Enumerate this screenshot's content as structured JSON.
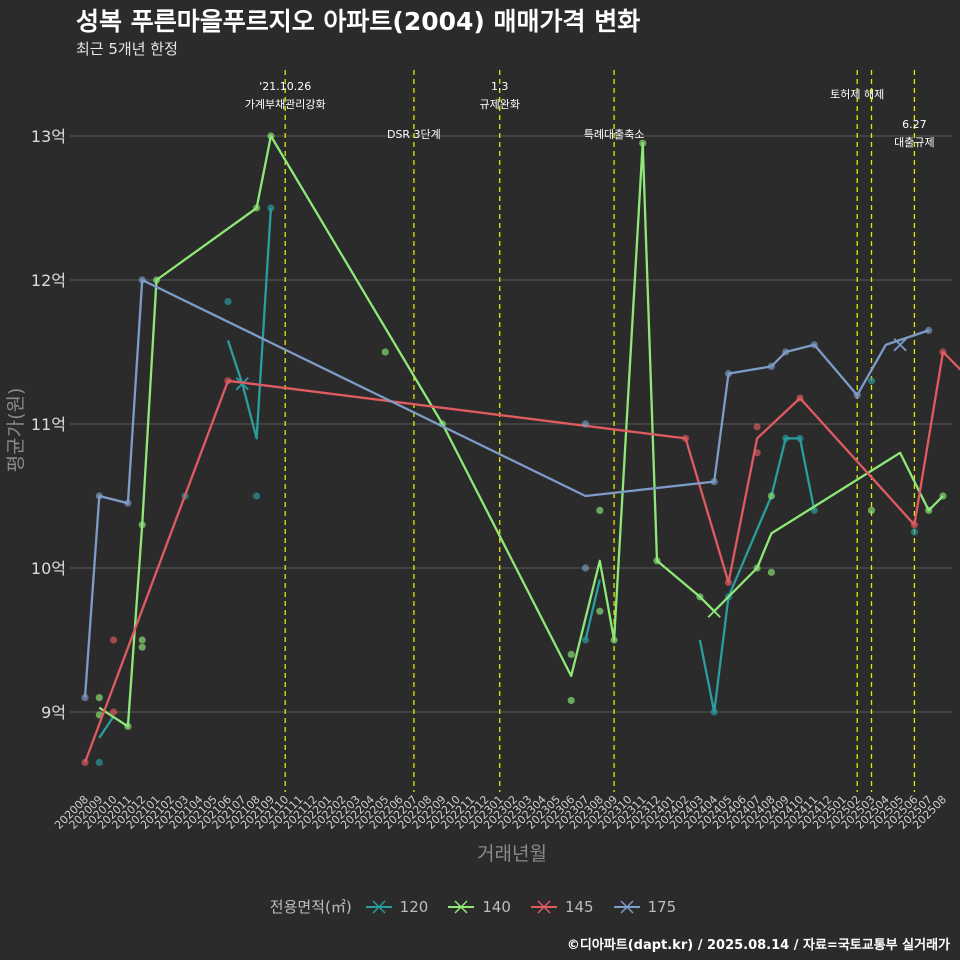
{
  "title": "성복 푸른마을푸르지오 아파트(2004) 매매가격 변화",
  "subtitle": "최근 5개년 한정",
  "caption": "©디아파트(dapt.kr) / 2025.08.14 / 자료=국토교통부 실거래가",
  "colors": {
    "background": "#2b2b2b",
    "grid": "#505050",
    "vline": "#e6e600",
    "s120": "#2a9d9f",
    "s140": "#8ee878",
    "s145": "#e05a62",
    "s175": "#7e9cc8"
  },
  "chart_data": {
    "type": "line",
    "title": "성복 푸른마을푸르지오 아파트(2004) 매매가격 변화",
    "subtitle": "최근 5개년 한정",
    "xlabel": "거래년월",
    "ylabel": "평균가(원)",
    "ylim": [
      8.5,
      13.45
    ],
    "yticks": [
      9,
      10,
      11,
      12,
      13
    ],
    "ytick_labels": [
      "9억",
      "10억",
      "11억",
      "12억",
      "13억"
    ],
    "legend_title": "전용면적(㎡)",
    "legend_position": "bottom",
    "grid": true,
    "x_categories": [
      "202008",
      "202009",
      "202010",
      "202011",
      "202012",
      "202101",
      "202102",
      "202103",
      "202104",
      "202105",
      "202106",
      "202107",
      "202108",
      "202109",
      "202110",
      "202111",
      "202112",
      "202201",
      "202202",
      "202203",
      "202204",
      "202205",
      "202206",
      "202207",
      "202208",
      "202209",
      "202210",
      "202211",
      "202212",
      "202301",
      "202302",
      "202303",
      "202304",
      "202305",
      "202306",
      "202307",
      "202308",
      "202309",
      "202310",
      "202311",
      "202312",
      "202401",
      "202402",
      "202403",
      "202404",
      "202405",
      "202406",
      "202407",
      "202408",
      "202409",
      "202410",
      "202411",
      "202412",
      "202501",
      "202502",
      "202503",
      "202504",
      "202505",
      "202506",
      "202507",
      "202508"
    ],
    "events": [
      {
        "x": "202110",
        "label": "'21.10.26\n가계부채관리강화",
        "row": 0
      },
      {
        "x": "202207",
        "label": "DSR 3단계",
        "row": 2
      },
      {
        "x": "202301",
        "label": "1.3\n규제완화",
        "row": 0
      },
      {
        "x": "202309",
        "label": "특례대출축소",
        "row": 2
      },
      {
        "x": "202502",
        "label": "토허제 해제",
        "row": 1
      },
      {
        "x": "202503",
        "label": "",
        "row": 0
      },
      {
        "x": "202506",
        "label": "6.27\n대출규제",
        "row": 3
      }
    ],
    "series": [
      {
        "name": "120",
        "color": "#2a9d9f",
        "line": [
          [
            "202009",
            8.82
          ],
          [
            "202010",
            8.97
          ]
        ],
        "line2": [
          [
            "202106",
            11.58
          ],
          [
            "202107",
            11.28
          ],
          [
            "202108",
            10.9
          ],
          [
            "202109",
            12.5
          ]
        ],
        "line3": [
          [
            "202307",
            9.5
          ],
          [
            "202308",
            9.92
          ]
        ],
        "line4": [
          [
            "202403",
            9.5
          ],
          [
            "202404",
            9.0
          ],
          [
            "202405",
            9.8
          ],
          [
            "202408",
            10.5
          ],
          [
            "202409",
            10.9
          ],
          [
            "202410",
            10.9
          ],
          [
            "202411",
            10.4
          ]
        ],
        "points": [
          [
            "202009",
            8.65
          ],
          [
            "202103",
            10.5
          ],
          [
            "202106",
            11.85
          ],
          [
            "202108",
            10.5
          ],
          [
            "202109",
            12.5
          ],
          [
            "202307",
            9.5
          ],
          [
            "202404",
            9.0
          ],
          [
            "202405",
            9.8
          ],
          [
            "202409",
            10.9
          ],
          [
            "202410",
            10.9
          ],
          [
            "202411",
            10.4
          ],
          [
            "202503",
            11.3
          ],
          [
            "202506",
            10.25
          ]
        ],
        "crosses": [
          [
            "202107",
            11.28
          ]
        ]
      },
      {
        "name": "140",
        "color": "#8ee878",
        "line": [
          [
            "202009",
            9.03
          ],
          [
            "202011",
            8.9
          ],
          [
            "202012",
            10.3
          ],
          [
            "202101",
            12.0
          ],
          [
            "202108",
            12.5
          ],
          [
            "202109",
            13.0
          ],
          [
            "202209",
            11.0
          ],
          [
            "202306",
            9.25
          ],
          [
            "202308",
            10.05
          ],
          [
            "202309",
            9.5
          ],
          [
            "202311",
            12.95
          ],
          [
            "202312",
            10.05
          ],
          [
            "202403",
            9.8
          ],
          [
            "202404",
            9.7
          ],
          [
            "202407",
            10.0
          ],
          [
            "202408",
            10.24
          ],
          [
            "202505",
            10.8
          ],
          [
            "202507",
            10.4
          ],
          [
            "202508",
            10.5
          ]
        ],
        "points": [
          [
            "202009",
            9.1
          ],
          [
            "202009",
            8.98
          ],
          [
            "202011",
            8.9
          ],
          [
            "202012",
            9.5
          ],
          [
            "202012",
            9.45
          ],
          [
            "202012",
            10.3
          ],
          [
            "202101",
            12.0
          ],
          [
            "202108",
            12.5
          ],
          [
            "202109",
            13.0
          ],
          [
            "202205",
            11.5
          ],
          [
            "202209",
            11.0
          ],
          [
            "202306",
            9.4
          ],
          [
            "202306",
            9.08
          ],
          [
            "202308",
            9.7
          ],
          [
            "202308",
            10.4
          ],
          [
            "202309",
            9.5
          ],
          [
            "202311",
            12.95
          ],
          [
            "202312",
            10.05
          ],
          [
            "202403",
            9.8
          ],
          [
            "202407",
            10.0
          ],
          [
            "202408",
            9.97
          ],
          [
            "202408",
            10.5
          ],
          [
            "202503",
            10.4
          ],
          [
            "202507",
            10.4
          ],
          [
            "202508",
            10.5
          ]
        ],
        "crosses": [
          [
            "202404",
            9.7
          ]
        ]
      },
      {
        "name": "145",
        "color": "#e05a62",
        "line": [
          [
            "202008",
            8.65
          ],
          [
            "202106",
            11.3
          ],
          [
            "202402",
            10.9
          ],
          [
            "202405",
            9.9
          ],
          [
            "202407",
            10.9
          ],
          [
            "202410",
            11.18
          ],
          [
            "202506",
            10.3
          ],
          [
            "202508",
            11.5
          ],
          [
            "202509",
            11.3
          ]
        ],
        "points": [
          [
            "202008",
            8.65
          ],
          [
            "202010",
            9.5
          ],
          [
            "202010",
            9.0
          ],
          [
            "202106",
            11.3
          ],
          [
            "202402",
            10.9
          ],
          [
            "202405",
            9.9
          ],
          [
            "202407",
            10.98
          ],
          [
            "202407",
            10.8
          ],
          [
            "202410",
            11.18
          ],
          [
            "202506",
            10.3
          ],
          [
            "202508",
            11.5
          ],
          [
            "202509",
            11.3
          ]
        ],
        "crosses": []
      },
      {
        "name": "175",
        "color": "#7e9cc8",
        "line": [
          [
            "202008",
            9.1
          ],
          [
            "202009",
            10.5
          ],
          [
            "202011",
            10.45
          ],
          [
            "202012",
            12.0
          ],
          [
            "202307",
            10.5
          ],
          [
            "202404",
            10.6
          ],
          [
            "202405",
            11.35
          ],
          [
            "202408",
            11.4
          ],
          [
            "202409",
            11.5
          ],
          [
            "202411",
            11.55
          ],
          [
            "202502",
            11.2
          ],
          [
            "202504",
            11.55
          ],
          [
            "202507",
            11.65
          ]
        ],
        "points": [
          [
            "202008",
            9.1
          ],
          [
            "202009",
            10.5
          ],
          [
            "202011",
            10.45
          ],
          [
            "202012",
            12.0
          ],
          [
            "202307",
            11.0
          ],
          [
            "202307",
            10.0
          ],
          [
            "202404",
            10.6
          ],
          [
            "202405",
            11.35
          ],
          [
            "202408",
            11.4
          ],
          [
            "202409",
            11.5
          ],
          [
            "202411",
            11.55
          ],
          [
            "202502",
            11.2
          ],
          [
            "202507",
            11.65
          ]
        ],
        "crosses": [
          [
            "202505",
            11.55
          ]
        ]
      }
    ]
  }
}
